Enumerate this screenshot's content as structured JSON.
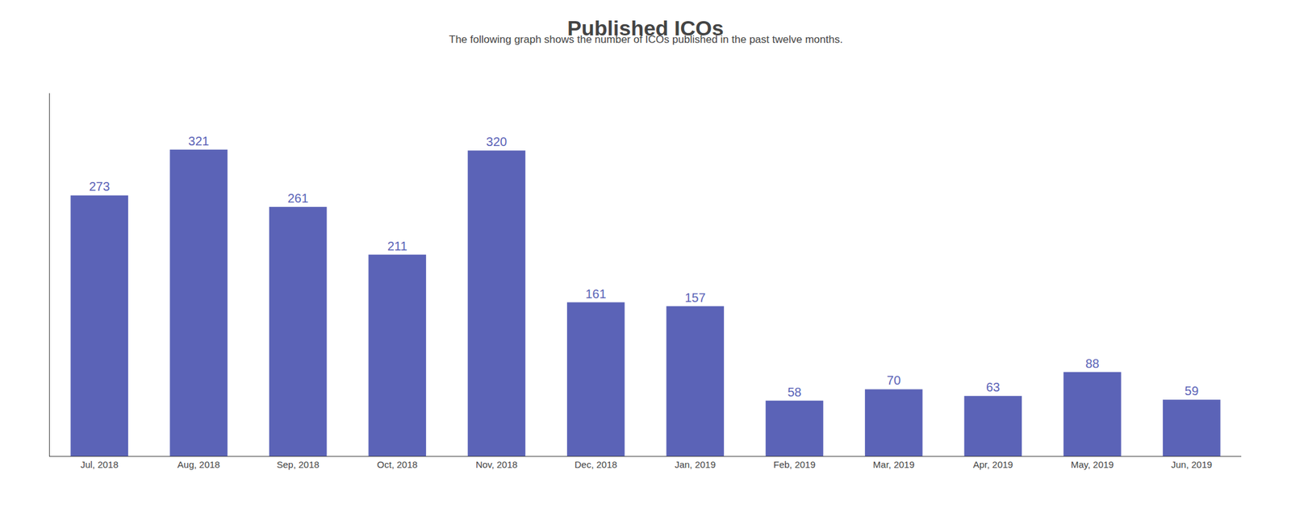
{
  "chart_data": {
    "type": "bar",
    "title": "Published ICOs",
    "subtitle": "The following graph shows the number of ICOs published in the past twelve months.",
    "categories": [
      "Jul, 2018",
      "Aug, 2018",
      "Sep, 2018",
      "Oct, 2018",
      "Nov, 2018",
      "Dec, 2018",
      "Jan, 2019",
      "Feb, 2019",
      "Mar, 2019",
      "Apr, 2019",
      "May, 2019",
      "Jun, 2019"
    ],
    "values": [
      273,
      321,
      261,
      211,
      320,
      161,
      157,
      58,
      70,
      63,
      88,
      59
    ],
    "color": "#5b63b7",
    "ylim": [
      0,
      380
    ],
    "data_labels": true,
    "tick_labels": "x",
    "grid": false
  }
}
